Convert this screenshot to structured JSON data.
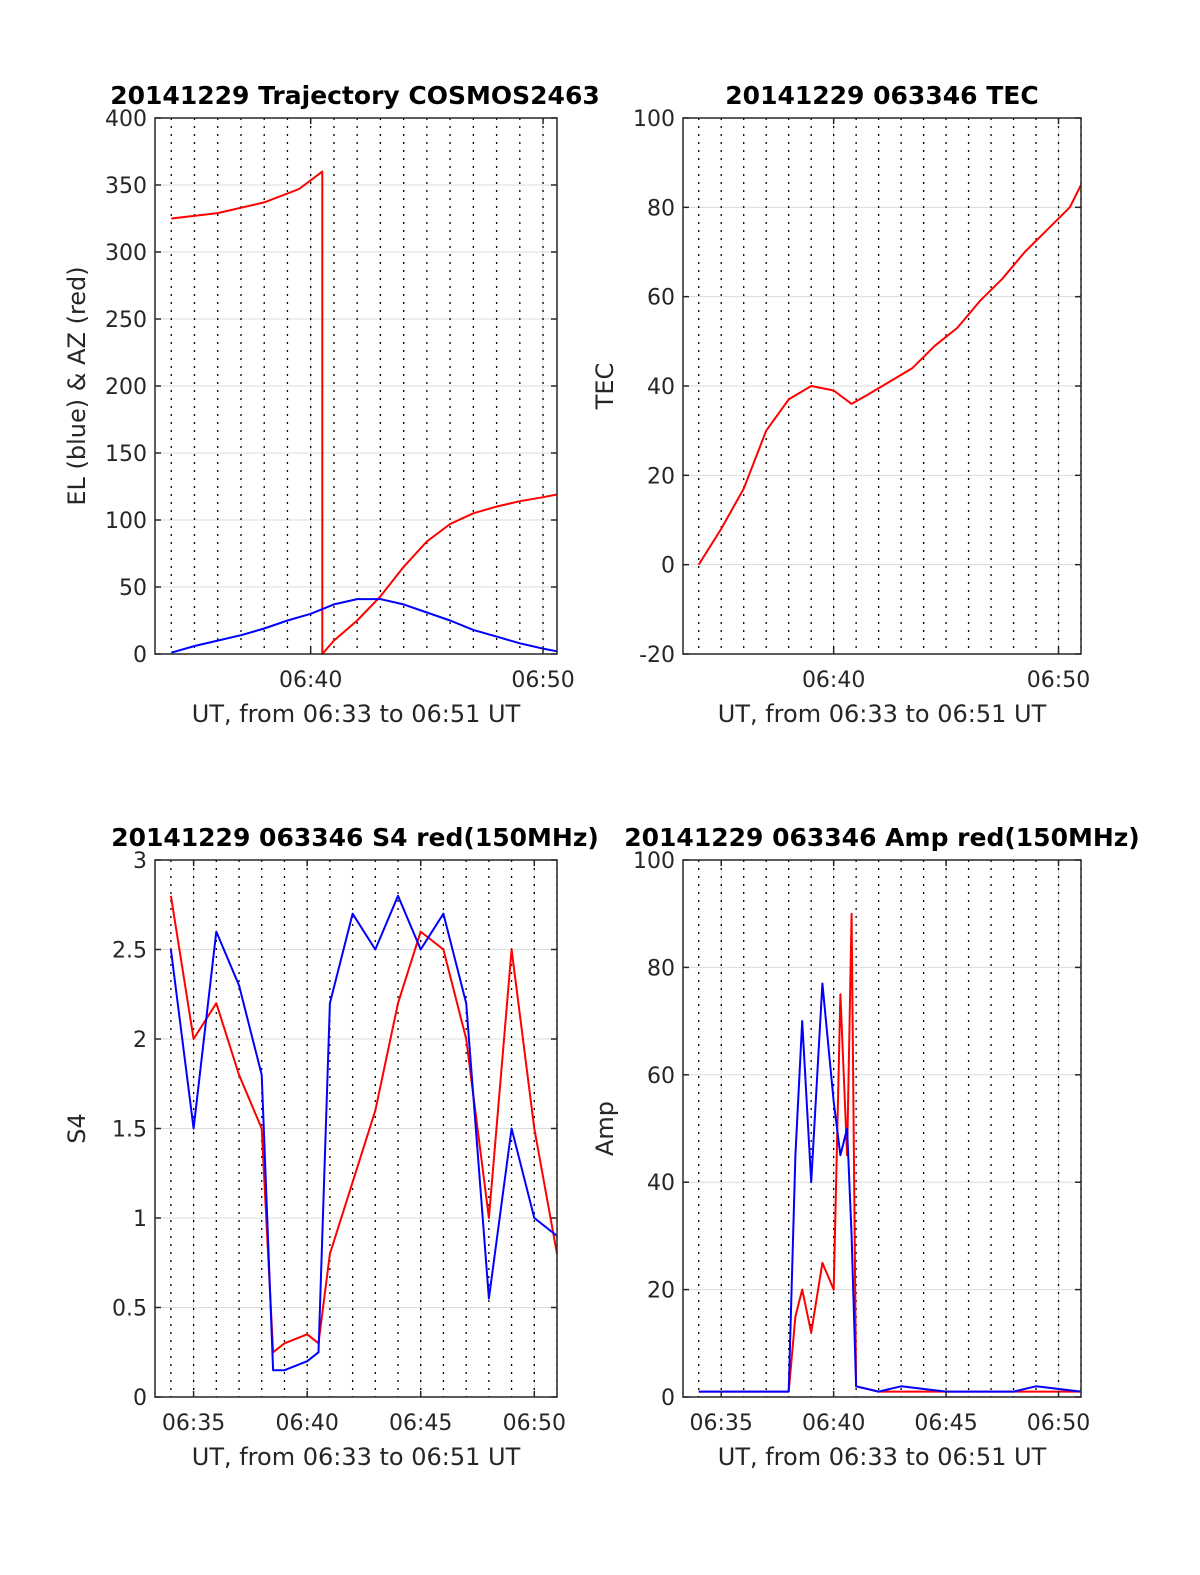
{
  "figure_colors": {
    "red": "#ff0000",
    "blue": "#0000ff",
    "axes": "#262626",
    "grid": "#dcdcdc",
    "minor_grid": "#000000"
  },
  "chart_data": [
    {
      "id": "trajectory",
      "type": "line",
      "title": "20141229 Trajectory COSMOS2463",
      "xlabel": "UT, from 06:33 to 06:51 UT",
      "ylabel": "EL (blue) & AZ (red)",
      "xlim": [
        33.3,
        50.6
      ],
      "ylim": [
        0,
        400
      ],
      "xticks": [
        40,
        50
      ],
      "xtick_labels": [
        "06:40",
        "06:50"
      ],
      "yticks": [
        0,
        50,
        100,
        150,
        200,
        250,
        300,
        350,
        400
      ],
      "ytick_labels": [
        "0",
        "50",
        "100",
        "150",
        "200",
        "250",
        "300",
        "350",
        "400"
      ],
      "grid": true,
      "series": [
        {
          "color": "#ff0000",
          "x": [
            34.0,
            36.0,
            38.0,
            39.5,
            40.5,
            40.5,
            41.0,
            42.0,
            43.0,
            44.0,
            45.0,
            46.0,
            47.0,
            48.0,
            49.0,
            50.0,
            50.6
          ],
          "y": [
            325,
            329,
            337,
            347,
            360,
            0,
            10,
            25,
            43,
            65,
            84,
            97,
            105,
            110,
            114,
            117,
            119
          ]
        },
        {
          "color": "#0000ff",
          "x": [
            34.0,
            35.0,
            36.0,
            37.0,
            38.0,
            39.0,
            40.0,
            41.0,
            42.0,
            43.0,
            44.0,
            45.0,
            46.0,
            47.0,
            48.0,
            49.0,
            50.0,
            50.6
          ],
          "y": [
            1,
            6,
            10,
            14,
            19,
            25,
            30,
            37,
            41,
            41,
            37,
            31,
            25,
            18,
            13,
            8,
            4,
            2
          ]
        }
      ]
    },
    {
      "id": "tec",
      "type": "line",
      "title": "20141229 063346 TEC",
      "xlabel": "UT, from 06:33 to 06:51 UT",
      "ylabel": "TEC",
      "xlim": [
        33.3,
        51.0
      ],
      "ylim": [
        -20,
        100
      ],
      "xticks": [
        40,
        50
      ],
      "xtick_labels": [
        "06:40",
        "06:50"
      ],
      "yticks": [
        -20,
        0,
        20,
        40,
        60,
        80,
        100
      ],
      "ytick_labels": [
        "-20",
        "0",
        "20",
        "40",
        "60",
        "80",
        "100"
      ],
      "grid": true,
      "series": [
        {
          "color": "#ff0000",
          "x": [
            34.0,
            35.0,
            36.0,
            37.0,
            38.0,
            39.0,
            40.0,
            40.8,
            41.5,
            42.5,
            43.5,
            44.5,
            45.5,
            46.5,
            47.5,
            48.5,
            49.5,
            50.5,
            51.0
          ],
          "y": [
            0,
            8,
            17,
            30,
            37,
            40,
            39,
            36,
            38,
            41,
            44,
            49,
            53,
            59,
            64,
            70,
            75,
            80,
            85
          ]
        }
      ]
    },
    {
      "id": "s4",
      "type": "line",
      "title": "20141229 063346 S4 red(150MHz)",
      "xlabel": "UT, from 06:33 to 06:51 UT",
      "ylabel": "S4",
      "xlim": [
        33.3,
        51.0
      ],
      "ylim": [
        0,
        3
      ],
      "xticks": [
        35,
        40,
        45,
        50
      ],
      "xtick_labels": [
        "06:35",
        "06:40",
        "06:45",
        "06:50"
      ],
      "yticks": [
        0,
        0.5,
        1,
        1.5,
        2,
        2.5,
        3
      ],
      "ytick_labels": [
        "0",
        "0.5",
        "1",
        "1.5",
        "2",
        "2.5",
        "3"
      ],
      "grid": true,
      "series": [
        {
          "color": "#ff0000",
          "x": [
            34.0,
            35.0,
            36.0,
            37.0,
            38.0,
            38.5,
            39.0,
            40.0,
            40.5,
            41.0,
            42.0,
            43.0,
            44.0,
            45.0,
            46.0,
            47.0,
            48.0,
            49.0,
            50.0,
            51.0
          ],
          "y": [
            2.8,
            2.0,
            2.2,
            1.8,
            1.5,
            0.25,
            0.3,
            0.35,
            0.3,
            0.8,
            1.2,
            1.6,
            2.2,
            2.6,
            2.5,
            2.0,
            1.0,
            2.5,
            1.5,
            0.8
          ]
        },
        {
          "color": "#0000ff",
          "x": [
            34.0,
            35.0,
            36.0,
            37.0,
            38.0,
            38.5,
            39.0,
            40.0,
            40.5,
            41.0,
            42.0,
            43.0,
            44.0,
            45.0,
            46.0,
            47.0,
            48.0,
            49.0,
            50.0,
            51.0
          ],
          "y": [
            2.5,
            1.5,
            2.6,
            2.3,
            1.8,
            0.15,
            0.15,
            0.2,
            0.25,
            2.2,
            2.7,
            2.5,
            2.8,
            2.5,
            2.7,
            2.2,
            0.55,
            1.5,
            1.0,
            0.9
          ]
        }
      ]
    },
    {
      "id": "amp",
      "type": "line",
      "title": "20141229 063346 Amp red(150MHz)",
      "xlabel": "UT, from 06:33 to 06:51 UT",
      "ylabel": "Amp",
      "xlim": [
        33.3,
        51.0
      ],
      "ylim": [
        0,
        100
      ],
      "xticks": [
        35,
        40,
        45,
        50
      ],
      "xtick_labels": [
        "06:35",
        "06:40",
        "06:45",
        "06:50"
      ],
      "yticks": [
        0,
        20,
        40,
        60,
        80,
        100
      ],
      "ytick_labels": [
        "0",
        "20",
        "40",
        "60",
        "80",
        "100"
      ],
      "grid": true,
      "series": [
        {
          "color": "#ff0000",
          "x": [
            34.0,
            38.0,
            38.3,
            38.6,
            39.0,
            39.5,
            40.0,
            40.3,
            40.6,
            40.8,
            41.0,
            42.0,
            45.0,
            48.0,
            51.0
          ],
          "y": [
            1,
            1,
            15,
            20,
            12,
            25,
            20,
            75,
            45,
            90,
            2,
            1,
            1,
            1,
            1
          ]
        },
        {
          "color": "#0000ff",
          "x": [
            34.0,
            38.0,
            38.3,
            38.6,
            39.0,
            39.5,
            40.0,
            40.3,
            40.6,
            40.8,
            41.0,
            42.0,
            43.0,
            45.0,
            48.0,
            49.0,
            51.0
          ],
          "y": [
            1,
            1,
            45,
            70,
            40,
            77,
            55,
            45,
            50,
            30,
            2,
            1,
            2,
            1,
            1,
            2,
            1
          ]
        }
      ]
    }
  ]
}
